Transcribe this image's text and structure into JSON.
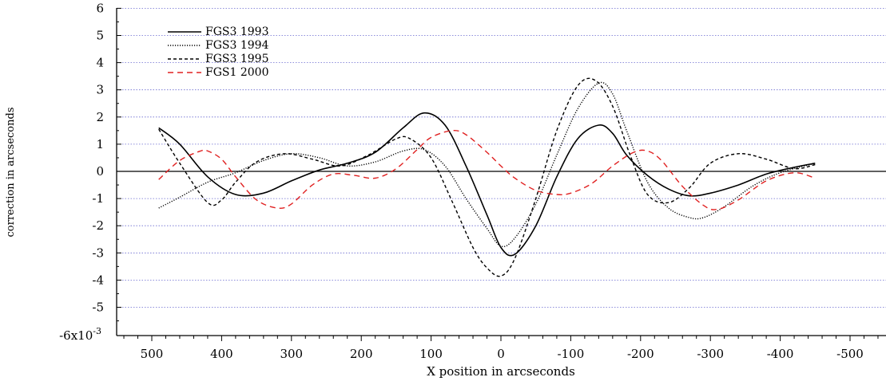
{
  "chart_data": {
    "type": "line",
    "xlabel": "X position in arcseconds",
    "ylabel": "correction in arcseconds",
    "xlim": [
      550,
      -550
    ],
    "ylim": [
      -6,
      6
    ],
    "y_exponent_label": "-6x10",
    "y_exponent_sup": "-3",
    "x_ticks": [
      500,
      400,
      300,
      200,
      100,
      0,
      -100,
      -200,
      -300,
      -400,
      -500
    ],
    "y_ticks": [
      -5,
      -4,
      -3,
      -2,
      -1,
      0,
      1,
      2,
      3,
      4,
      5,
      6
    ],
    "grid": true,
    "legend_position": "top-left",
    "series": [
      {
        "name": "FGS3 1993",
        "color": "#000000",
        "style": "solid",
        "x": [
          490,
          460,
          420,
          380,
          340,
          300,
          260,
          220,
          180,
          140,
          110,
          80,
          50,
          20,
          0,
          -20,
          -50,
          -80,
          -110,
          -140,
          -160,
          -180,
          -210,
          -240,
          -270,
          -300,
          -340,
          -380,
          -420,
          -450
        ],
        "y": [
          1.6,
          1.0,
          -0.2,
          -0.85,
          -0.8,
          -0.35,
          0.05,
          0.3,
          0.7,
          1.6,
          2.15,
          1.7,
          0.2,
          -1.6,
          -2.8,
          -3.05,
          -2.0,
          -0.2,
          1.2,
          1.7,
          1.4,
          0.6,
          -0.15,
          -0.65,
          -0.9,
          -0.8,
          -0.5,
          -0.1,
          0.15,
          0.3
        ]
      },
      {
        "name": "FGS3  1994",
        "color": "#000000",
        "style": "dotted",
        "x": [
          490,
          460,
          420,
          380,
          340,
          300,
          260,
          220,
          180,
          140,
          110,
          80,
          50,
          20,
          0,
          -20,
          -50,
          -80,
          -110,
          -140,
          -160,
          -180,
          -210,
          -240,
          -270,
          -290,
          -320,
          -360,
          -400,
          -450
        ],
        "y": [
          -1.35,
          -0.95,
          -0.4,
          -0.05,
          0.4,
          0.65,
          0.5,
          0.2,
          0.35,
          0.75,
          0.8,
          0.2,
          -1.0,
          -2.1,
          -2.75,
          -2.45,
          -1.2,
          0.6,
          2.3,
          3.25,
          2.85,
          1.5,
          -0.4,
          -1.35,
          -1.7,
          -1.7,
          -1.3,
          -0.55,
          -0.05,
          0.3
        ]
      },
      {
        "name": "FGS3 1995",
        "color": "#000000",
        "style": "dashed",
        "x": [
          490,
          460,
          420,
          400,
          380,
          350,
          310,
          270,
          230,
          190,
          150,
          130,
          100,
          70,
          40,
          20,
          0,
          -20,
          -50,
          -80,
          -110,
          -135,
          -160,
          -185,
          -210,
          -240,
          -270,
          -300,
          -340,
          -380,
          -420,
          -450
        ],
        "y": [
          1.55,
          0.3,
          -1.15,
          -1.05,
          -0.4,
          0.35,
          0.65,
          0.45,
          0.2,
          0.6,
          1.2,
          1.2,
          0.5,
          -1.1,
          -2.8,
          -3.55,
          -3.85,
          -3.2,
          -1.0,
          1.5,
          3.15,
          3.35,
          2.4,
          0.6,
          -0.85,
          -1.15,
          -0.6,
          0.3,
          0.65,
          0.45,
          0.1,
          0.25
        ]
      },
      {
        "name": "FGS1 2000",
        "color": "#e02020",
        "style": "dashed",
        "x": [
          490,
          460,
          430,
          420,
          400,
          380,
          350,
          320,
          300,
          270,
          240,
          210,
          180,
          150,
          120,
          100,
          70,
          50,
          20,
          0,
          -20,
          -50,
          -80,
          -100,
          -130,
          -160,
          -190,
          -210,
          -230,
          -260,
          -290,
          -310,
          -340,
          -380,
          -420,
          -450
        ],
        "y": [
          -0.3,
          0.4,
          0.75,
          0.75,
          0.45,
          -0.2,
          -1.05,
          -1.35,
          -1.2,
          -0.5,
          -0.1,
          -0.15,
          -0.25,
          0.1,
          0.8,
          1.25,
          1.5,
          1.35,
          0.7,
          0.2,
          -0.25,
          -0.7,
          -0.85,
          -0.8,
          -0.45,
          0.2,
          0.7,
          0.75,
          0.4,
          -0.55,
          -1.25,
          -1.4,
          -1.05,
          -0.35,
          -0.05,
          -0.25
        ]
      }
    ]
  }
}
